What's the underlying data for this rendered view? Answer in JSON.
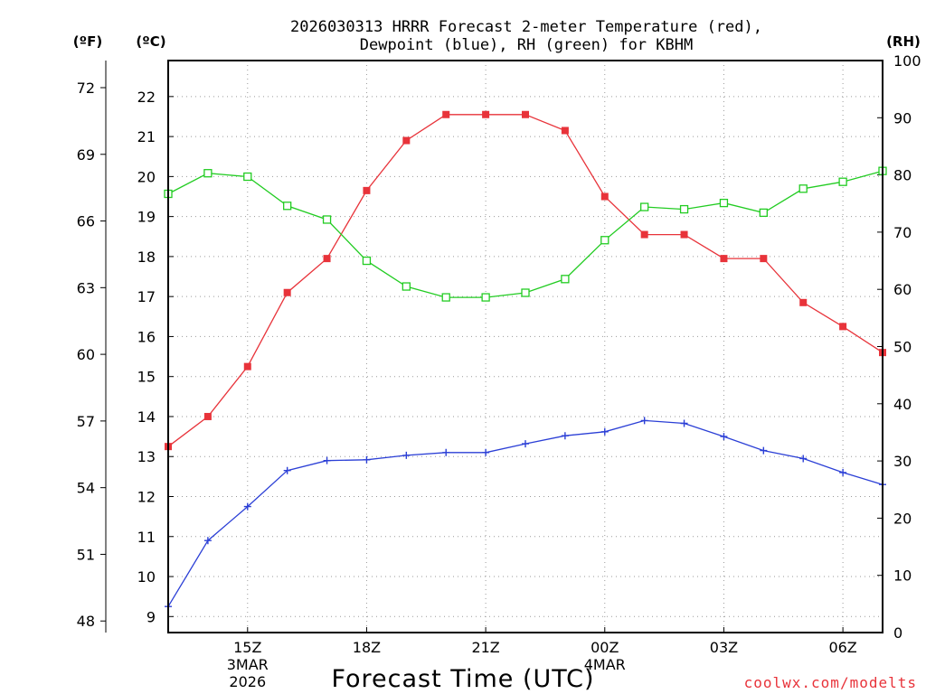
{
  "chart_data": {
    "type": "line",
    "title_line1": "2026030313 HRRR Forecast 2-meter Temperature (red),",
    "title_line2": "Dewpoint (blue), RH (green) for KBHM",
    "xlabel": "Forecast Time (UTC)",
    "credit": "coolwx.com/modelts",
    "units": {
      "fahrenheit": "(ºF)",
      "celsius": "(ºC)",
      "rh": "(RH)"
    },
    "celsius_axis": {
      "min": 8.6,
      "max": 22.9,
      "ticks": [
        9,
        10,
        11,
        12,
        13,
        14,
        15,
        16,
        17,
        18,
        19,
        20,
        21,
        22
      ]
    },
    "fahrenheit_ticks": [
      48,
      51,
      54,
      57,
      60,
      63,
      66,
      69,
      72
    ],
    "rh_axis": {
      "min": 0,
      "max": 100,
      "ticks": [
        0,
        10,
        20,
        30,
        40,
        50,
        60,
        70,
        80,
        90,
        100
      ]
    },
    "x_hours": {
      "min": 13,
      "max": 31
    },
    "x_ticks": [
      {
        "hour": 15,
        "label": "15Z",
        "date": "3MAR",
        "year": "2026"
      },
      {
        "hour": 18,
        "label": "18Z"
      },
      {
        "hour": 21,
        "label": "21Z"
      },
      {
        "hour": 24,
        "label": "00Z",
        "date": "4MAR"
      },
      {
        "hour": 27,
        "label": "03Z"
      },
      {
        "hour": 30,
        "label": "06Z"
      }
    ],
    "series": [
      {
        "name": "Temperature",
        "color": "#e8333a",
        "marker": "filled-square",
        "axis": "celsius",
        "hours": [
          13,
          14,
          15,
          16,
          17,
          18,
          19,
          20,
          21,
          22,
          23,
          24,
          25,
          26,
          27,
          28,
          29,
          30,
          31
        ],
        "values": [
          13.25,
          14.0,
          15.25,
          17.1,
          17.95,
          19.65,
          20.9,
          21.55,
          21.55,
          21.55,
          21.15,
          19.5,
          18.55,
          18.55,
          17.95,
          17.95,
          16.85,
          16.25,
          15.6
        ]
      },
      {
        "name": "Dewpoint",
        "color": "#2b3fd6",
        "marker": "plus",
        "axis": "celsius",
        "hours": [
          13,
          14,
          15,
          16,
          17,
          18,
          19,
          20,
          21,
          22,
          23,
          24,
          25,
          26,
          27,
          28,
          29,
          30,
          31
        ],
        "values": [
          9.25,
          10.9,
          11.75,
          12.65,
          12.9,
          12.92,
          13.03,
          13.1,
          13.1,
          13.32,
          13.52,
          13.62,
          13.9,
          13.83,
          13.5,
          13.15,
          12.95,
          12.6,
          12.3
        ]
      },
      {
        "name": "RH",
        "color": "#22cc22",
        "marker": "open-square",
        "axis": "rh",
        "hours": [
          13,
          14,
          15,
          16,
          17,
          18,
          19,
          20,
          21,
          22,
          23,
          24,
          25,
          26,
          27,
          28,
          29,
          30,
          31
        ],
        "values": [
          76.7,
          80.3,
          79.7,
          74.6,
          72.2,
          65.0,
          60.5,
          58.6,
          58.6,
          59.4,
          61.8,
          68.6,
          74.4,
          74.0,
          75.1,
          73.4,
          77.6,
          78.8,
          80.7
        ]
      }
    ]
  }
}
